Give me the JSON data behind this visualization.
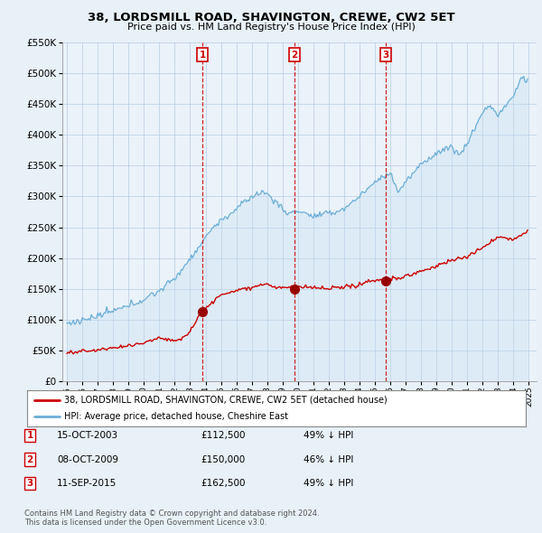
{
  "title": "38, LORDSMILL ROAD, SHAVINGTON, CREWE, CW2 5ET",
  "subtitle": "Price paid vs. HM Land Registry's House Price Index (HPI)",
  "legend_line1": "38, LORDSMILL ROAD, SHAVINGTON, CREWE, CW2 5ET (detached house)",
  "legend_line2": "HPI: Average price, detached house, Cheshire East",
  "footnote": "Contains HM Land Registry data © Crown copyright and database right 2024.\nThis data is licensed under the Open Government Licence v3.0.",
  "transactions": [
    {
      "label": "1",
      "date": "15-OCT-2003",
      "price": 112500,
      "pct": "49% ↓ HPI",
      "x_year": 2003.79
    },
    {
      "label": "2",
      "date": "08-OCT-2009",
      "price": 150000,
      "pct": "46% ↓ HPI",
      "x_year": 2009.77
    },
    {
      "label": "3",
      "date": "11-SEP-2015",
      "price": 162500,
      "pct": "49% ↓ HPI",
      "x_year": 2015.69
    }
  ],
  "hpi_color": "#6baed6",
  "hpi_fill_color": "#c6dff0",
  "price_color": "#cc0000",
  "background_color": "#e8f0f8",
  "plot_bg": "#eaf2fa",
  "ylim": [
    0,
    550000
  ],
  "yticks": [
    0,
    50000,
    100000,
    150000,
    200000,
    250000,
    300000,
    350000,
    400000,
    450000,
    500000,
    550000
  ],
  "xlim_start": 1994.7,
  "xlim_end": 2025.5,
  "xticks": [
    1995,
    1996,
    1997,
    1998,
    1999,
    2000,
    2001,
    2002,
    2003,
    2004,
    2005,
    2006,
    2007,
    2008,
    2009,
    2010,
    2011,
    2012,
    2013,
    2014,
    2015,
    2016,
    2017,
    2018,
    2019,
    2020,
    2021,
    2022,
    2023,
    2024,
    2025
  ]
}
